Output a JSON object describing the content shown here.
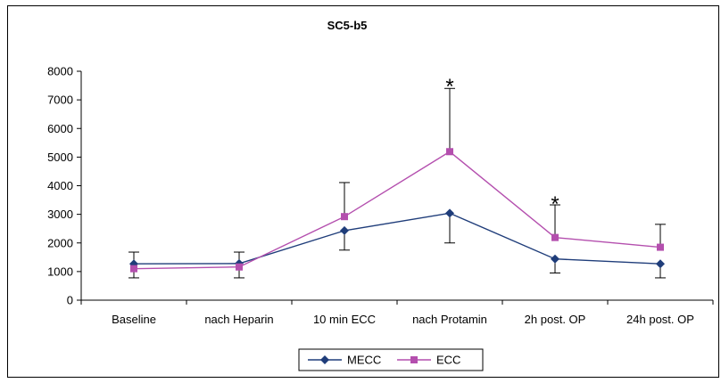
{
  "chart_data": {
    "type": "line",
    "title": "SC5-b5",
    "categories": [
      "Baseline",
      "nach Heparin",
      "10 min ECC",
      "nach Protamin",
      "2h post. OP",
      "24h post. OP"
    ],
    "ylim": [
      0,
      8000
    ],
    "yticks": [
      0,
      1000,
      2000,
      3000,
      4000,
      5000,
      6000,
      7000,
      8000
    ],
    "series": [
      {
        "name": "MECC",
        "color": "#1f3d7a",
        "marker": "diamond",
        "values": [
          1270,
          1280,
          2430,
          3040,
          1440,
          1270
        ],
        "error_low": [
          780,
          780,
          1750,
          2000,
          950,
          780
        ],
        "error_high": null
      },
      {
        "name": "ECC",
        "color": "#b44fae",
        "marker": "square",
        "values": [
          1100,
          1160,
          2920,
          5190,
          2190,
          1850
        ],
        "error_low": null,
        "error_high": [
          1680,
          1680,
          4110,
          7400,
          3330,
          2650
        ]
      }
    ],
    "annotations": [
      {
        "text": "*",
        "category_index": 3,
        "y": 7650
      },
      {
        "text": "*",
        "category_index": 4,
        "y": 3550
      }
    ],
    "grid": false,
    "legend": "bottom-center"
  }
}
